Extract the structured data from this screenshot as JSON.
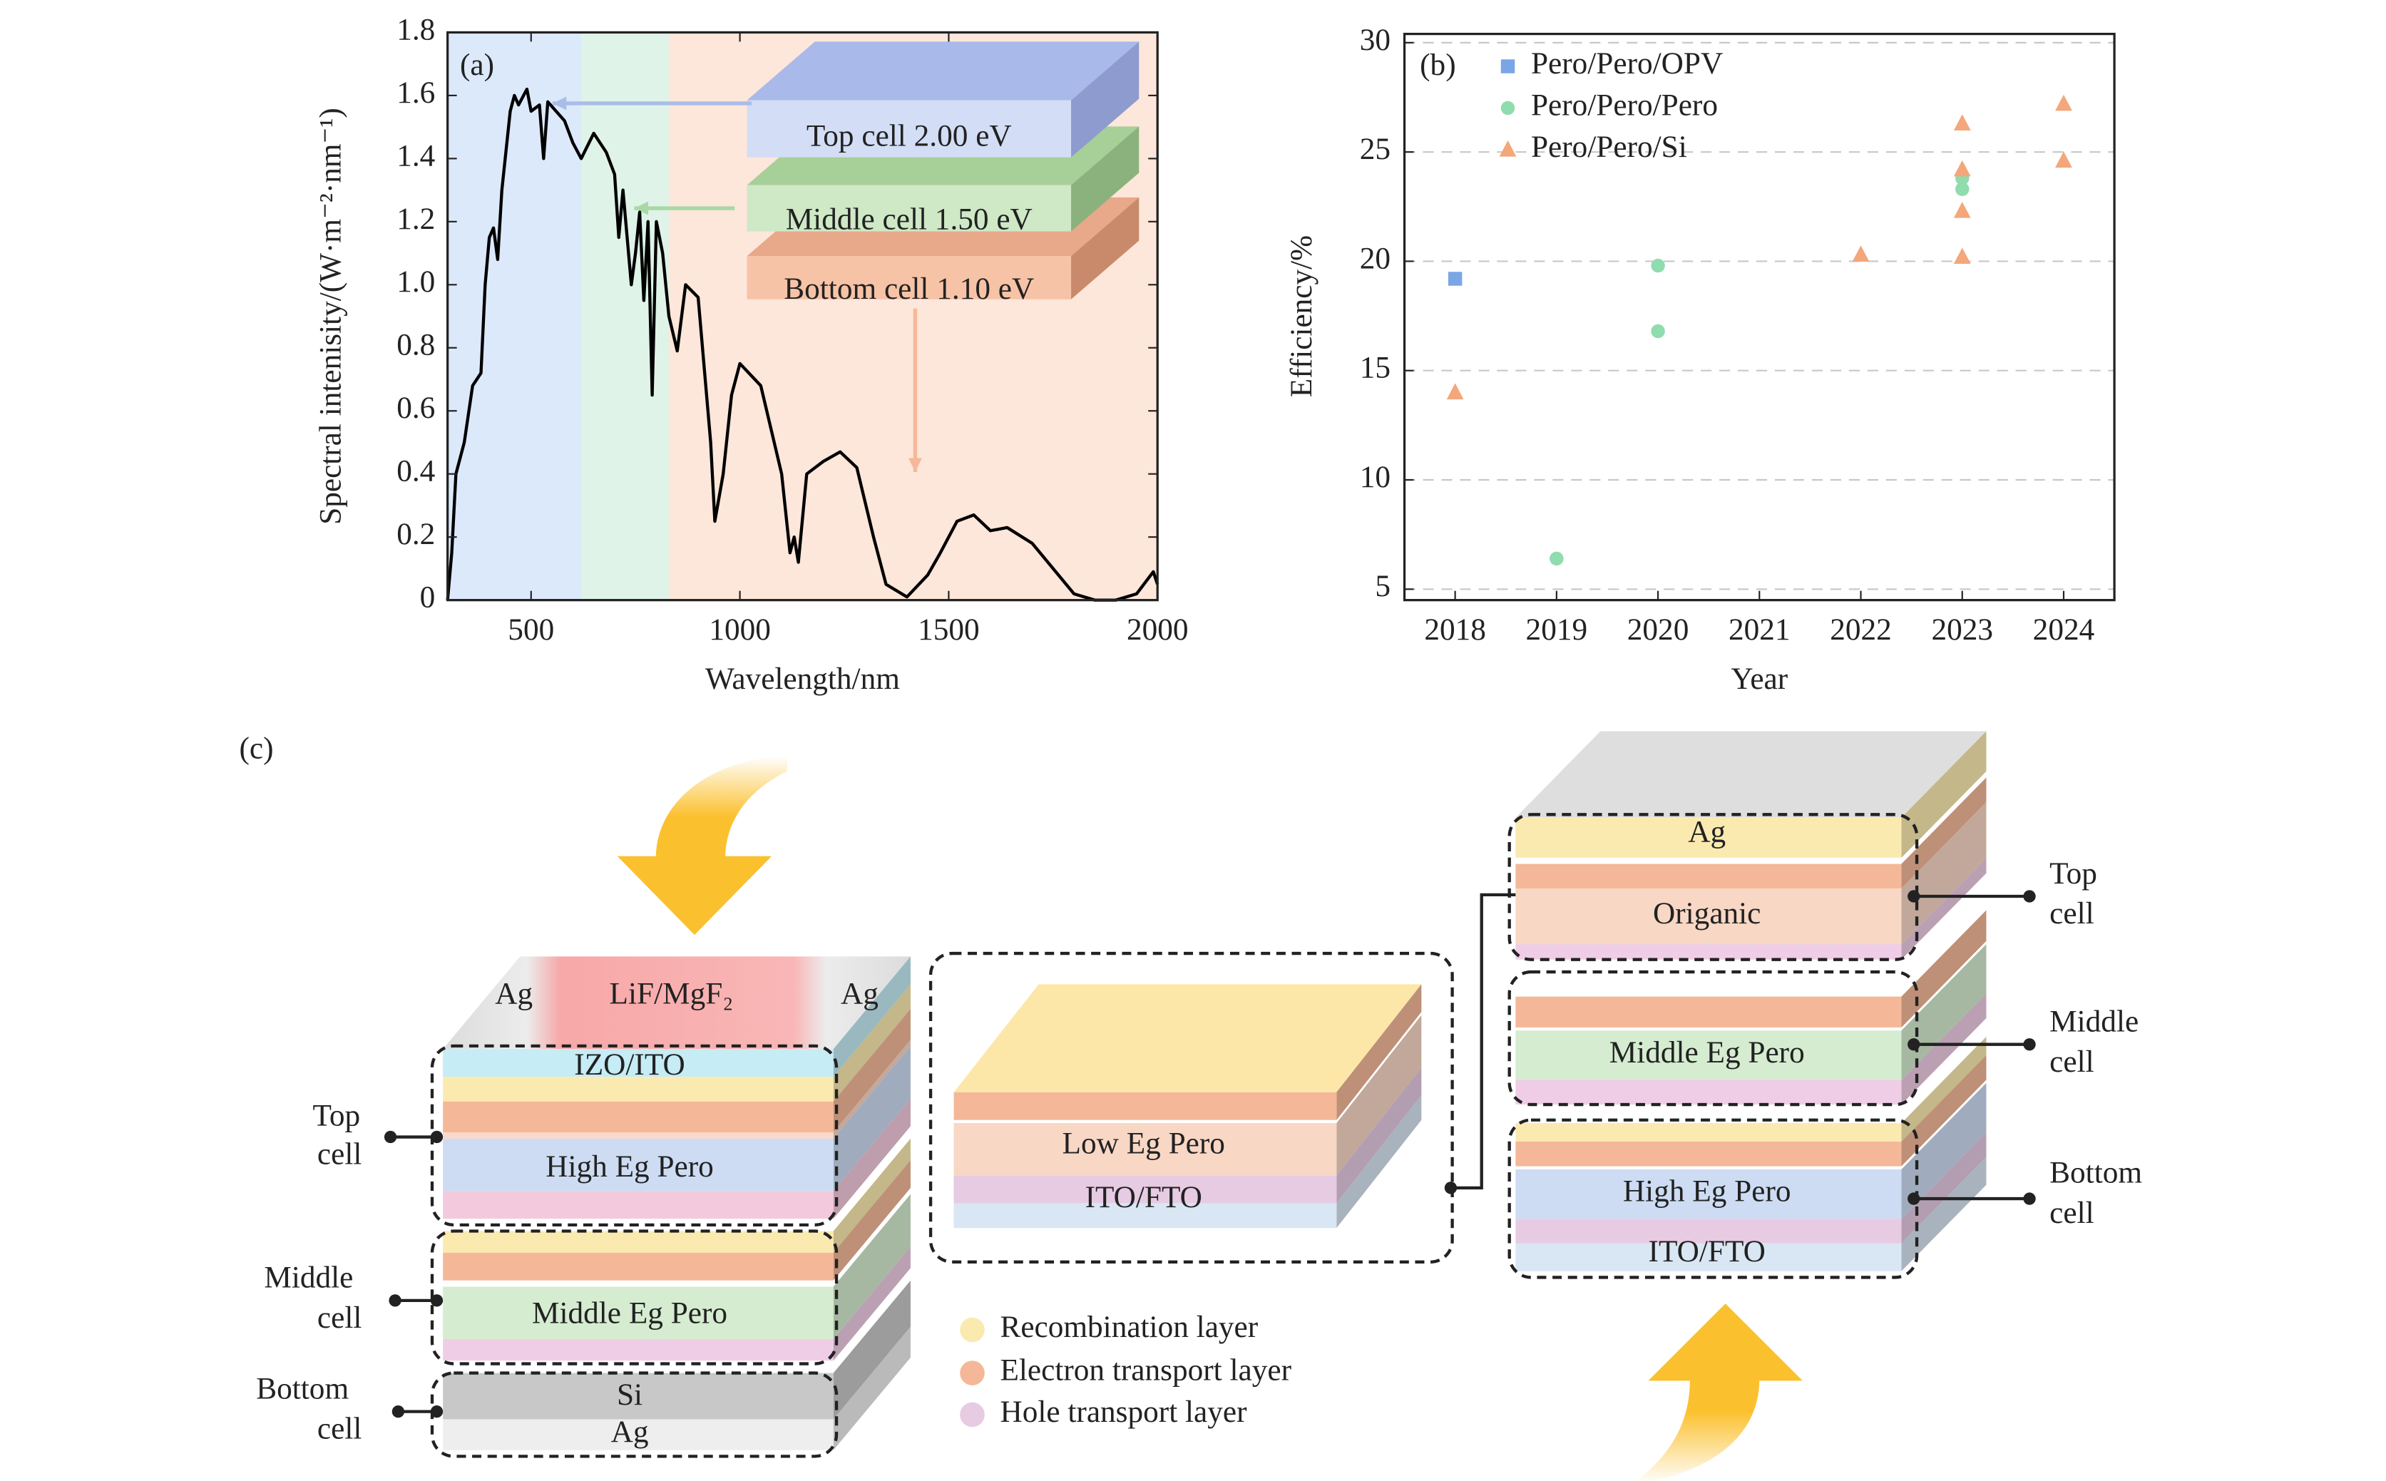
{
  "chart_data": [
    {
      "type": "line",
      "label": "(a)",
      "x_label": "Wavelength/nm",
      "y_label": "Spectral intenisity/(W·m⁻²·nm⁻¹)",
      "x": [
        300,
        310,
        320,
        330,
        340,
        360,
        380,
        390,
        400,
        410,
        420,
        430,
        450,
        460,
        470,
        490,
        500,
        520,
        530,
        540,
        560,
        580,
        600,
        620,
        650,
        680,
        700,
        710,
        720,
        740,
        750,
        760,
        770,
        780,
        790,
        800,
        815,
        830,
        850,
        870,
        900,
        930,
        940,
        960,
        980,
        1000,
        1050,
        1100,
        1120,
        1130,
        1140,
        1160,
        1200,
        1240,
        1280,
        1320,
        1350,
        1400,
        1450,
        1480,
        1520,
        1560,
        1600,
        1640,
        1700,
        1750,
        1800,
        1850,
        1900,
        1950,
        1990,
        2000
      ],
      "values": [
        0,
        0.15,
        0.4,
        0.45,
        0.5,
        0.68,
        0.72,
        1.0,
        1.15,
        1.18,
        1.08,
        1.3,
        1.55,
        1.6,
        1.57,
        1.62,
        1.55,
        1.57,
        1.4,
        1.58,
        1.55,
        1.52,
        1.45,
        1.4,
        1.48,
        1.42,
        1.35,
        1.15,
        1.3,
        1.0,
        1.1,
        1.23,
        0.95,
        1.2,
        0.65,
        1.2,
        1.1,
        0.9,
        0.79,
        1.0,
        0.96,
        0.5,
        0.25,
        0.4,
        0.65,
        0.75,
        0.68,
        0.4,
        0.15,
        0.2,
        0.12,
        0.4,
        0.44,
        0.47,
        0.42,
        0.2,
        0.05,
        0.01,
        0.08,
        0.15,
        0.25,
        0.27,
        0.22,
        0.23,
        0.18,
        0.1,
        0.02,
        0,
        0,
        0.02,
        0.09,
        0.05
      ],
      "color": "#000000",
      "regions": [
        {
          "from": 300,
          "to": 620,
          "color": "#dce9fb"
        },
        {
          "from": 620,
          "to": 830,
          "color": "#dff3e8"
        },
        {
          "from": 830,
          "to": 2000,
          "color": "#fde6da"
        }
      ],
      "annotations": [
        "Top cell 2.00 eV",
        "Middle cell 1.50 eV",
        "Bottom cell 1.10 eV"
      ],
      "xlim": [
        300,
        2000
      ],
      "xticks": [
        500,
        1000,
        1500,
        2000
      ],
      "ylim": [
        0,
        1.8
      ],
      "yticks": [
        0,
        0.2,
        0.4,
        0.6,
        0.8,
        {
          "value": 1,
          "label": "1.0"
        },
        1.2,
        1.4,
        1.6,
        1.8
      ]
    },
    {
      "type": "scatter",
      "label": "(b)",
      "x_label": "Year",
      "y_label": "Efficiency/%",
      "grid": true,
      "legend": "top-left",
      "series": [
        {
          "name": "Pero/Pero/OPV",
          "color": "#7aa6e6",
          "marker": "square",
          "x": [
            2018
          ],
          "values": [
            19.2
          ]
        },
        {
          "name": "Pero/Pero/Pero",
          "color": "#8fdcae",
          "marker": "circle",
          "x": [
            2019,
            2020,
            2020,
            2023,
            2023
          ],
          "values": [
            6.4,
            19.8,
            16.8,
            23.3,
            23.8
          ]
        },
        {
          "name": "Pero/Pero/Si",
          "color": "#f3a77a",
          "marker": "triangle",
          "x": [
            2018,
            2022,
            2023,
            2023,
            2023,
            2023,
            2024,
            2024
          ],
          "values": [
            14.0,
            20.3,
            26.3,
            24.2,
            22.3,
            20.2,
            27.2,
            24.6
          ]
        }
      ],
      "xlim": [
        2017.5,
        2024.5
      ],
      "xticks": [
        2018,
        2019,
        2020,
        2021,
        2022,
        2023,
        2024
      ],
      "ylim": [
        4.5,
        30.4
      ],
      "yticks": [
        5,
        10,
        15,
        20,
        25,
        30
      ]
    }
  ],
  "diagram": {
    "label": "(c)",
    "left_stack": {
      "layers": [
        "Ag",
        "LiF/MgF₂",
        "Ag",
        "IZO/ITO",
        "High Eg Pero",
        "Middle Eg Pero",
        "Si",
        "Ag"
      ],
      "cells": [
        [
          "Top",
          "cell"
        ],
        [
          "Middle",
          "cell"
        ],
        [
          "Bottom",
          "cell"
        ]
      ]
    },
    "middle_stack": {
      "layers": [
        "Low Eg Pero",
        "ITO/FTO"
      ]
    },
    "right_stack": {
      "layers": [
        "Ag",
        "Origanic",
        "Middle Eg Pero",
        "High Eg Pero",
        "ITO/FTO"
      ],
      "cells": [
        [
          "Top",
          "cell"
        ],
        [
          "Middle",
          "cell"
        ],
        [
          "Bottom",
          "cell"
        ]
      ]
    },
    "legend": [
      "Recombination layer",
      "Electron transport layer",
      "Hole transport layer"
    ]
  }
}
